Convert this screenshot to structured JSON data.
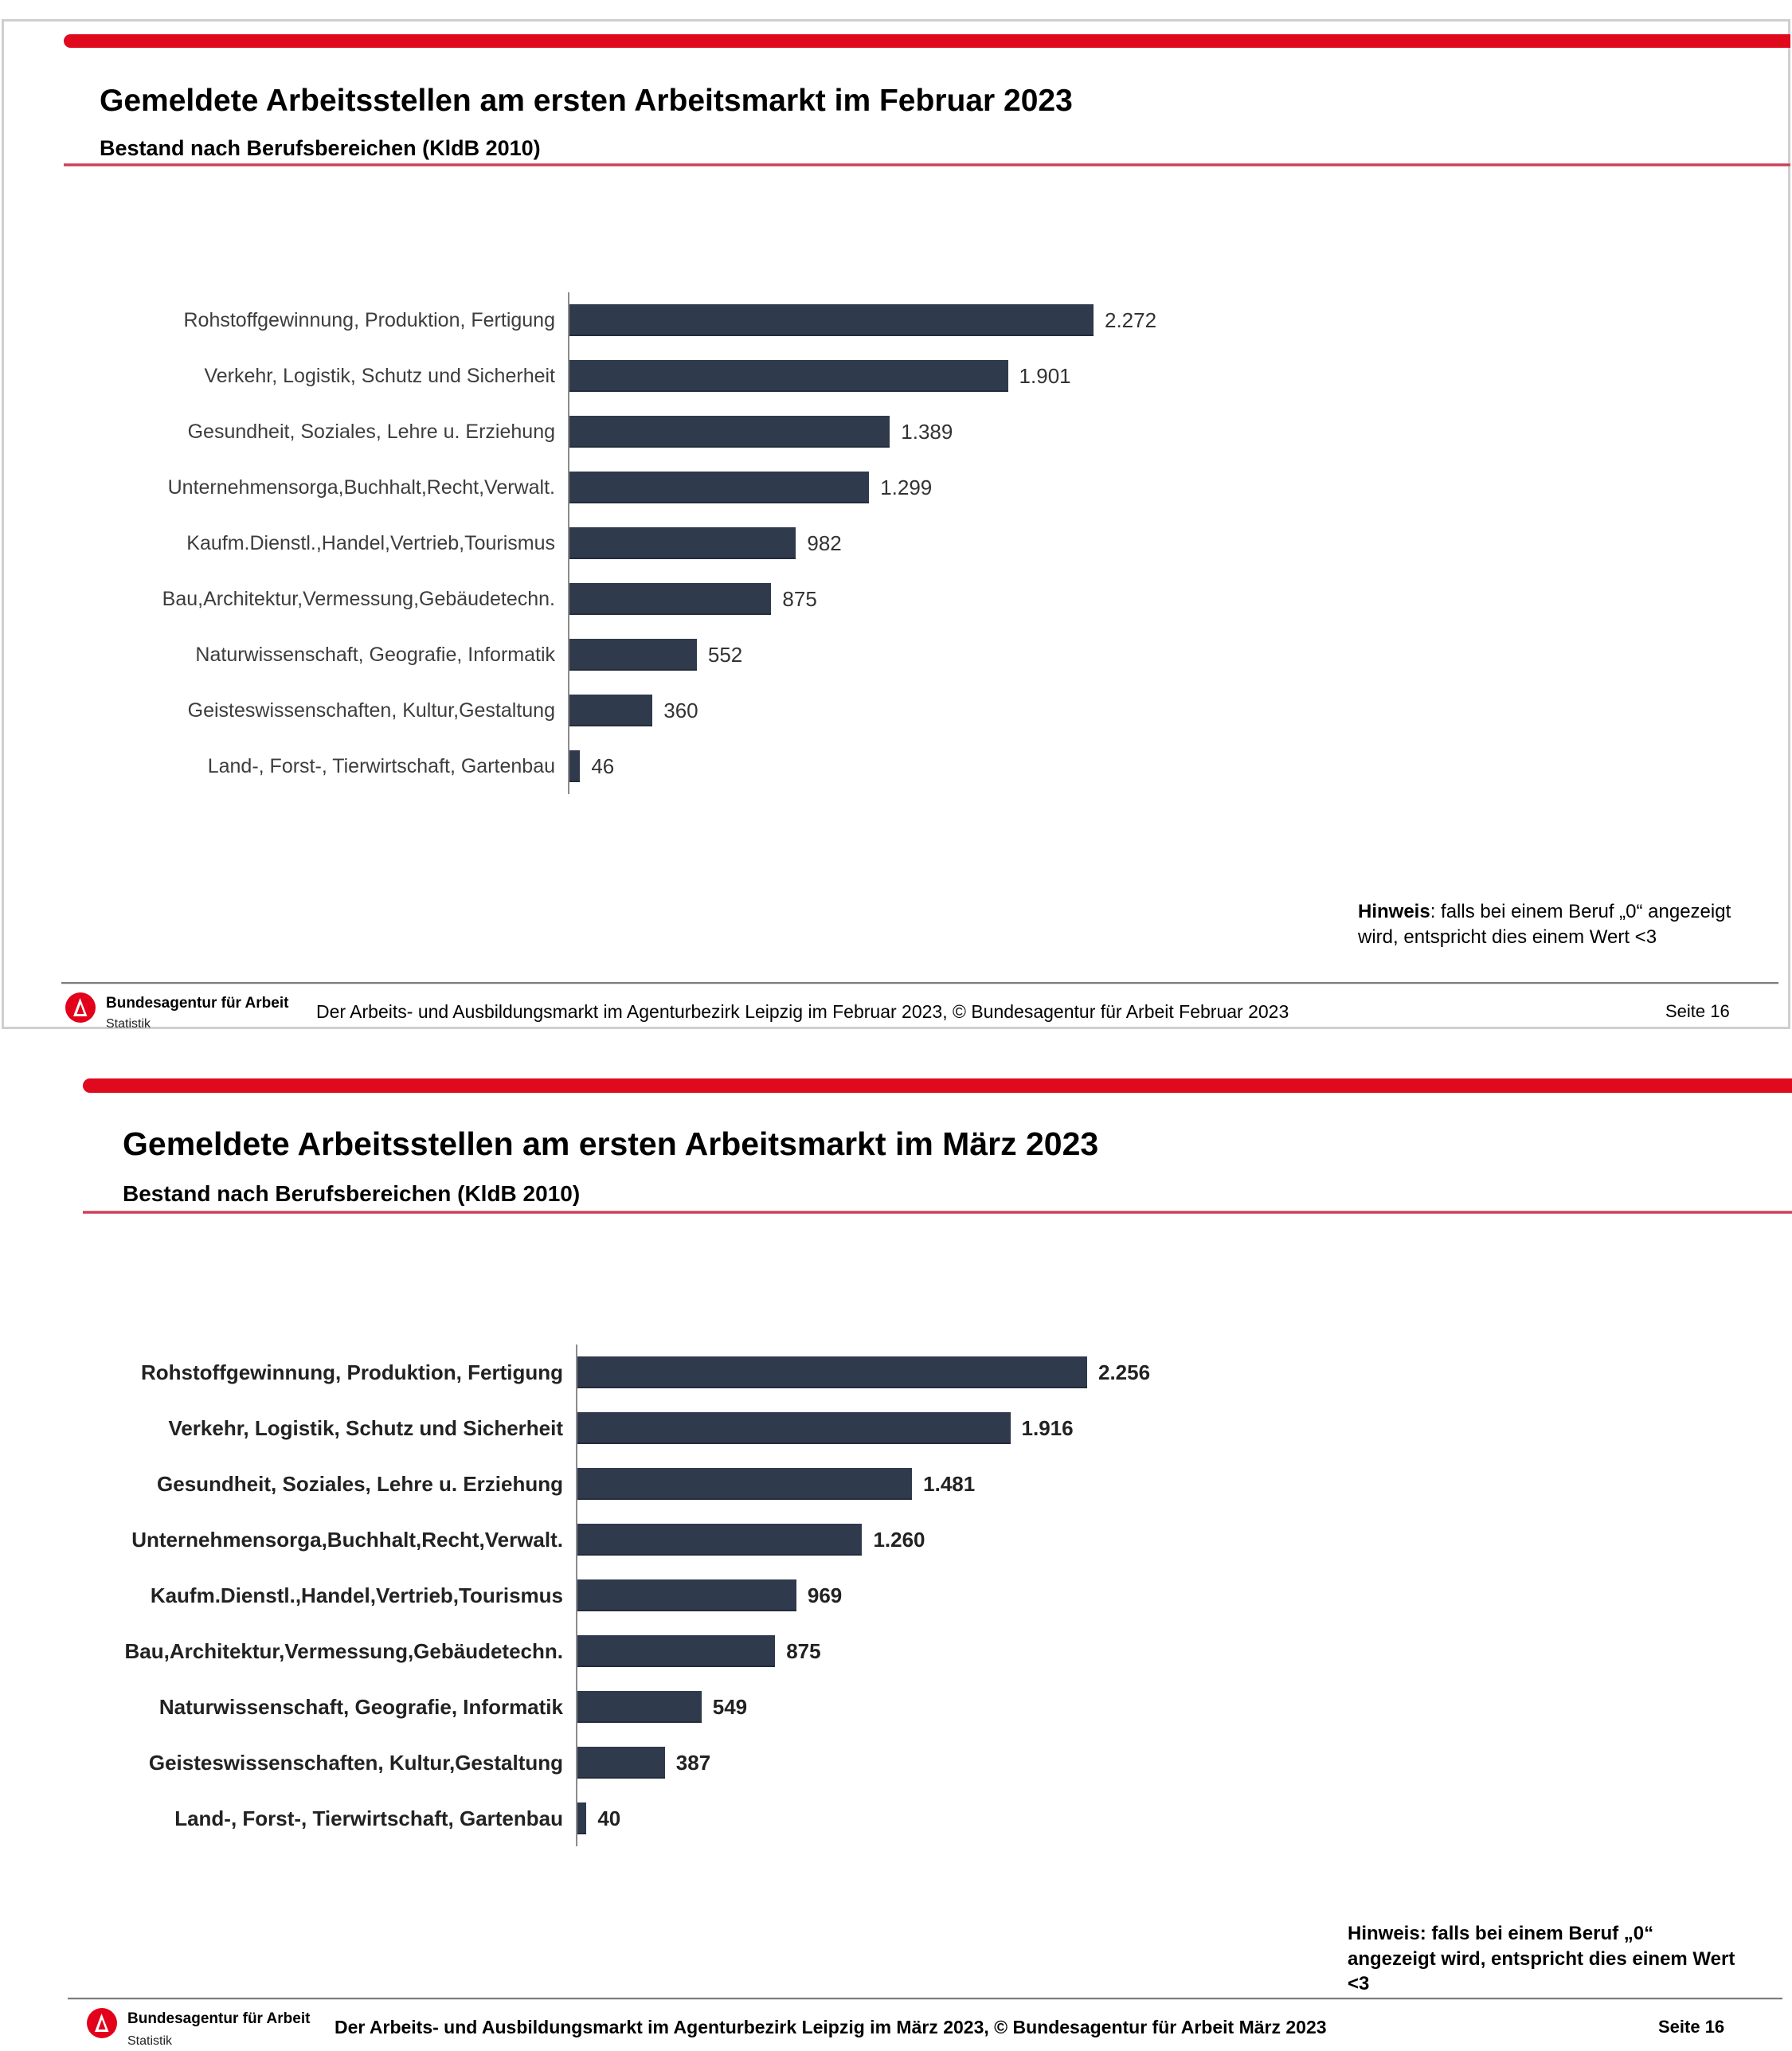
{
  "brand": {
    "red": "#E2001A",
    "bar_navy": "#2F3A4D"
  },
  "slides": [
    {
      "title": "Gemeldete Arbeitsstellen am ersten Arbeitsmarkt im Februar 2023",
      "subtitle": "Bestand nach Berufsbereichen (KldB 2010)",
      "note": {
        "label": "Hinweis",
        "rest": ": falls bei einem Beruf „0“ angezeigt wird, entspricht dies einem Wert <3"
      },
      "footer": {
        "org": "Bundesagentur für Arbeit",
        "dept": "Statistik",
        "citation": "Der Arbeits- und Ausbildungsmarkt im Agenturbezirk Leipzig im Februar 2023, © Bundesagentur für Arbeit Februar 2023",
        "page": "Seite 16"
      },
      "chart_data": {
        "type": "bar",
        "orientation": "horizontal",
        "title": "Gemeldete Arbeitsstellen am ersten Arbeitsmarkt im Februar 2023",
        "subtitle": "Bestand nach Berufsbereichen (KldB 2010)",
        "categories": [
          "Rohstoffgewinnung, Produktion, Fertigung",
          "Verkehr, Logistik, Schutz und Sicherheit",
          "Gesundheit, Soziales, Lehre u. Erziehung",
          "Unternehmensorga,Buchhalt,Recht,Verwalt.",
          "Kaufm.Dienstl.,Handel,Vertrieb,Tourismus",
          "Bau,Architektur,Vermessung,Gebäudetechn.",
          "Naturwissenschaft, Geografie, Informatik",
          "Geisteswissenschaften, Kultur,Gestaltung",
          "Land-, Forst-, Tierwirtschaft, Gartenbau"
        ],
        "values": [
          2272,
          1901,
          1389,
          1299,
          982,
          875,
          552,
          360,
          46
        ],
        "value_labels": [
          "2.272",
          "1.901",
          "1.389",
          "1.299",
          "982",
          "875",
          "552",
          "360",
          "46"
        ],
        "bar_color": "#2F3A4D",
        "xlim": [
          0,
          2400
        ],
        "grid": false,
        "legend": false
      }
    },
    {
      "title": "Gemeldete Arbeitsstellen am ersten Arbeitsmarkt im März 2023",
      "subtitle": "Bestand nach Berufsbereichen (KldB 2010)",
      "note": {
        "label": "Hinweis",
        "rest": ": falls bei einem Beruf „0“ angezeigt wird, entspricht dies einem Wert <3"
      },
      "footer": {
        "org": "Bundesagentur für Arbeit",
        "dept": "Statistik",
        "citation": "Der Arbeits- und Ausbildungsmarkt im Agenturbezirk Leipzig im März 2023, © Bundesagentur für Arbeit März 2023",
        "page": "Seite 16"
      },
      "chart_data": {
        "type": "bar",
        "orientation": "horizontal",
        "title": "Gemeldete Arbeitsstellen am ersten Arbeitsmarkt im März 2023",
        "subtitle": "Bestand nach Berufsbereichen (KldB 2010)",
        "categories": [
          "Rohstoffgewinnung, Produktion, Fertigung",
          "Verkehr, Logistik, Schutz und Sicherheit",
          "Gesundheit, Soziales, Lehre u. Erziehung",
          "Unternehmensorga,Buchhalt,Recht,Verwalt.",
          "Kaufm.Dienstl.,Handel,Vertrieb,Tourismus",
          "Bau,Architektur,Vermessung,Gebäudetechn.",
          "Naturwissenschaft, Geografie, Informatik",
          "Geisteswissenschaften, Kultur,Gestaltung",
          "Land-, Forst-, Tierwirtschaft, Gartenbau"
        ],
        "values": [
          2256,
          1916,
          1481,
          1260,
          969,
          875,
          549,
          387,
          40
        ],
        "value_labels": [
          "2.256",
          "1.916",
          "1.481",
          "1.260",
          "969",
          "875",
          "549",
          "387",
          "40"
        ],
        "bar_color": "#2F3A4D",
        "xlim": [
          0,
          2400
        ],
        "grid": false,
        "legend": false
      }
    }
  ]
}
